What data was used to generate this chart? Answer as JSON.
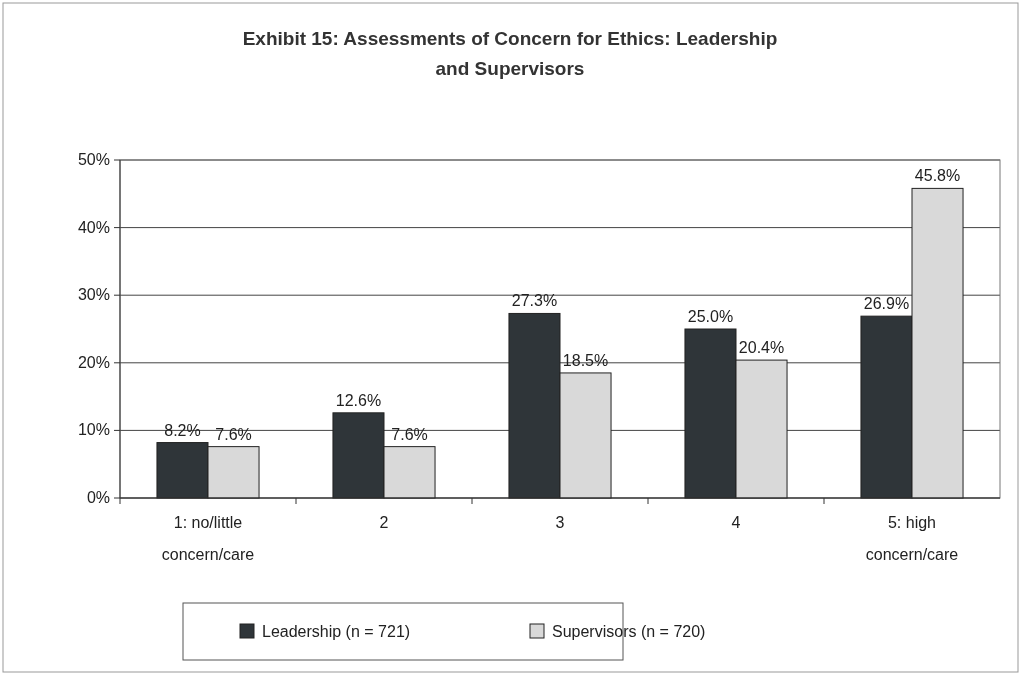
{
  "chart_data": {
    "type": "bar",
    "title": "Exhibit 15: Assessments of Concern for Ethics: Leadership and Supervisors",
    "categories": [
      "1: no/little concern/care",
      "2",
      "3",
      "4",
      "5: high concern/care"
    ],
    "series": [
      {
        "name": "Leadership (n = 721)",
        "color": "#2f3539",
        "values": [
          8.2,
          12.6,
          27.3,
          25.0,
          26.9
        ],
        "value_labels": [
          "8.2%",
          "12.6%",
          "27.3%",
          "25.0%",
          "26.9%"
        ]
      },
      {
        "name": "Supervisors (n = 720)",
        "color": "#d9d9d9",
        "values": [
          7.6,
          7.6,
          18.5,
          20.4,
          45.8
        ],
        "value_labels": [
          "7.6%",
          "7.6%",
          "18.5%",
          "20.4%",
          "45.8%"
        ]
      }
    ],
    "ylim": [
      0,
      50
    ],
    "yticks": [
      {
        "value": 0,
        "label": "0%"
      },
      {
        "value": 10,
        "label": "10%"
      },
      {
        "value": 20,
        "label": "20%"
      },
      {
        "value": 30,
        "label": "30%"
      },
      {
        "value": 40,
        "label": "40%"
      },
      {
        "value": 50,
        "label": "50%"
      }
    ],
    "grid": "y",
    "legend": "bottom"
  }
}
